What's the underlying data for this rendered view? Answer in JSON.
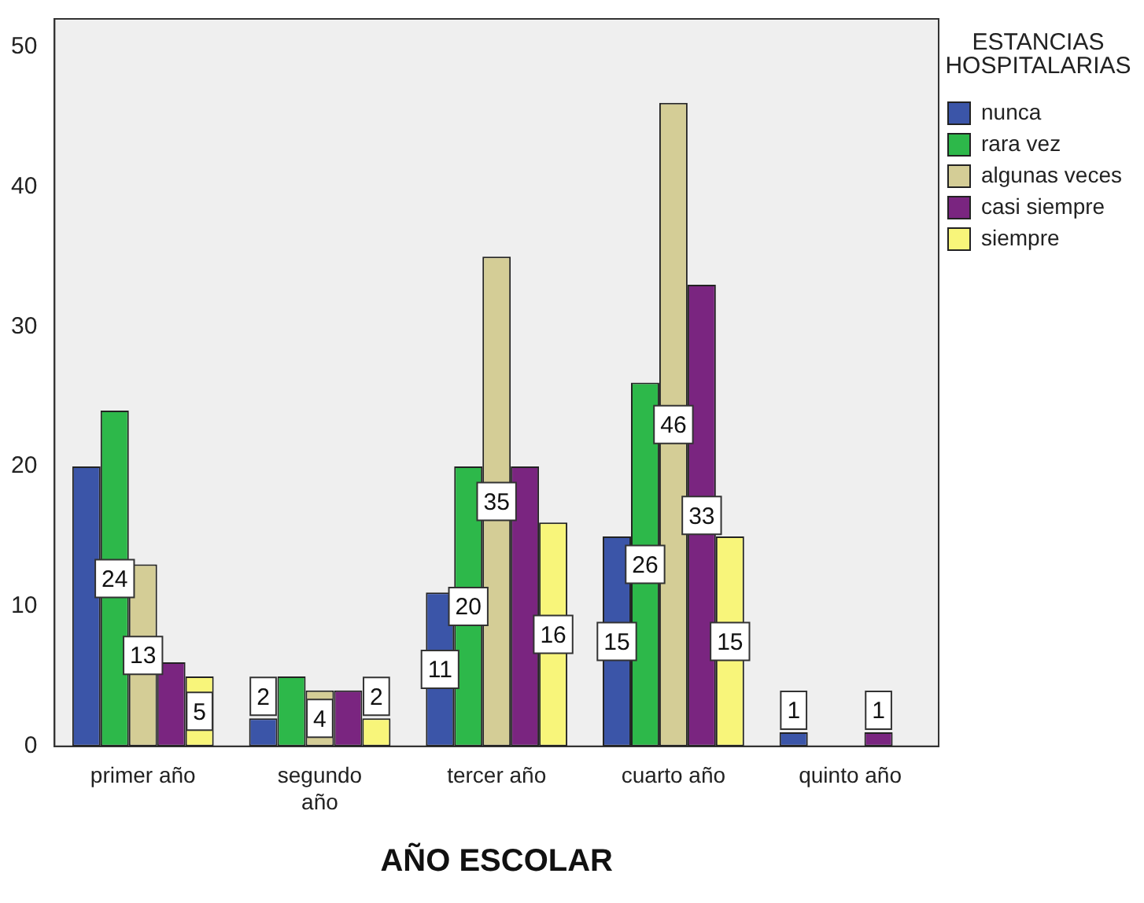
{
  "chart_data": {
    "type": "bar",
    "xlabel": "AÑO ESCOLAR",
    "legend_title": "ESTANCIAS HOSPITALARIAS",
    "legend": "right",
    "grid": false,
    "categories": [
      "primer año",
      "segundo año",
      "tercer año",
      "cuarto año",
      "quinto año"
    ],
    "ylim": [
      0,
      52
    ],
    "yticks": [
      0,
      10,
      20,
      30,
      40,
      50
    ],
    "series": [
      {
        "name": "nunca",
        "color": "#3b55a8",
        "values": [
          20,
          2,
          11,
          15,
          1
        ],
        "value_labels": [
          null,
          "2",
          "11",
          "15",
          "1"
        ]
      },
      {
        "name": "rara vez",
        "color": "#2db84a",
        "values": [
          24,
          5,
          20,
          26,
          0
        ],
        "value_labels": [
          "24",
          null,
          "20",
          "26",
          null
        ]
      },
      {
        "name": "algunas veces",
        "color": "#d4cd96",
        "values": [
          13,
          4,
          35,
          46,
          0
        ],
        "value_labels": [
          "13",
          "4",
          "35",
          "46",
          null
        ]
      },
      {
        "name": "casi siempre",
        "color": "#7a2580",
        "values": [
          6,
          4,
          20,
          33,
          1
        ],
        "value_labels": [
          null,
          null,
          null,
          "33",
          "1"
        ]
      },
      {
        "name": "siempre",
        "color": "#f8f57a",
        "values": [
          5,
          2,
          16,
          15,
          0
        ],
        "value_labels": [
          "5",
          "2",
          "16",
          "15",
          null
        ]
      }
    ]
  }
}
